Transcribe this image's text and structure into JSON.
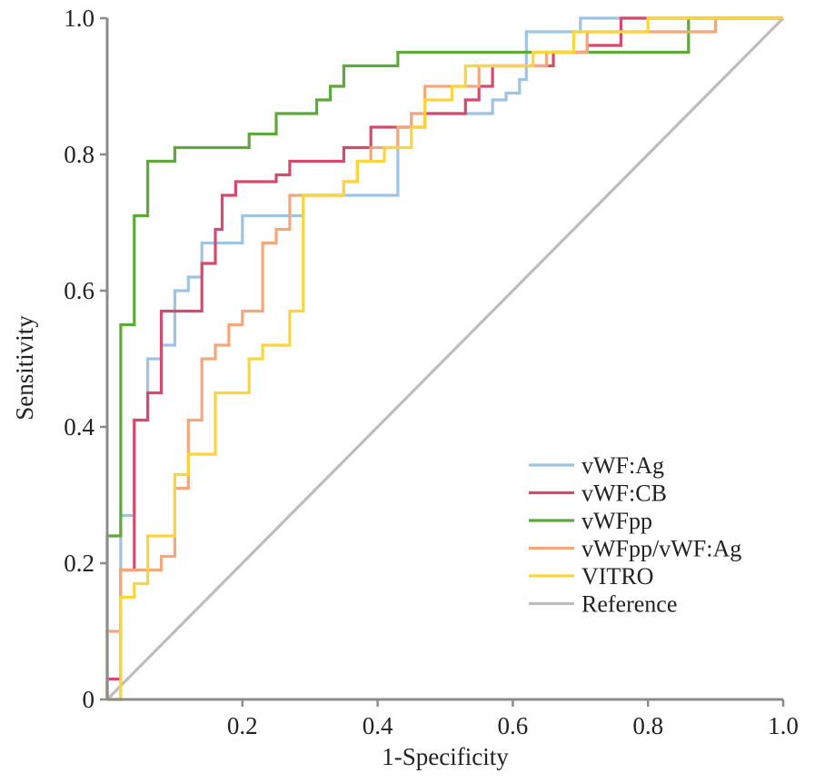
{
  "chart_data": {
    "type": "line",
    "xlabel": "1-Specificity",
    "ylabel": "Sensitivity",
    "xlim": [
      0,
      1
    ],
    "ylim": [
      0,
      1
    ],
    "x_ticks": [
      {
        "value": 0.2,
        "label": "0.2"
      },
      {
        "value": 0.4,
        "label": "0.4"
      },
      {
        "value": 0.6,
        "label": "0.6"
      },
      {
        "value": 0.8,
        "label": "0.8"
      },
      {
        "value": 1.0,
        "label": "1.0"
      }
    ],
    "y_ticks": [
      {
        "value": 0,
        "label": "0"
      },
      {
        "value": 0.2,
        "label": "0.2"
      },
      {
        "value": 0.4,
        "label": "0.4"
      },
      {
        "value": 0.6,
        "label": "0.6"
      },
      {
        "value": 0.8,
        "label": "0.8"
      },
      {
        "value": 1.0,
        "label": "1.0"
      }
    ],
    "grid": false,
    "legend_position": "bottom-right",
    "series": [
      {
        "name": "vWF:Ag",
        "color": "#9ec4e4",
        "points": [
          [
            0,
            0
          ],
          [
            0.02,
            0
          ],
          [
            0.02,
            0.2
          ],
          [
            0.02,
            0.27
          ],
          [
            0.04,
            0.27
          ],
          [
            0.04,
            0.41
          ],
          [
            0.06,
            0.41
          ],
          [
            0.06,
            0.5
          ],
          [
            0.08,
            0.5
          ],
          [
            0.08,
            0.52
          ],
          [
            0.1,
            0.52
          ],
          [
            0.1,
            0.6
          ],
          [
            0.12,
            0.6
          ],
          [
            0.12,
            0.62
          ],
          [
            0.14,
            0.62
          ],
          [
            0.14,
            0.67
          ],
          [
            0.2,
            0.67
          ],
          [
            0.2,
            0.71
          ],
          [
            0.29,
            0.71
          ],
          [
            0.29,
            0.74
          ],
          [
            0.43,
            0.74
          ],
          [
            0.43,
            0.84
          ],
          [
            0.45,
            0.84
          ],
          [
            0.45,
            0.86
          ],
          [
            0.51,
            0.86
          ],
          [
            0.51,
            0.86
          ],
          [
            0.57,
            0.86
          ],
          [
            0.57,
            0.88
          ],
          [
            0.59,
            0.88
          ],
          [
            0.59,
            0.89
          ],
          [
            0.61,
            0.89
          ],
          [
            0.61,
            0.91
          ],
          [
            0.62,
            0.91
          ],
          [
            0.62,
            0.98
          ],
          [
            0.7,
            0.98
          ],
          [
            0.7,
            1.0
          ],
          [
            1,
            1
          ]
        ]
      },
      {
        "name": "vWF:CB",
        "color": "#d64a6e",
        "points": [
          [
            0,
            0
          ],
          [
            0,
            0.03
          ],
          [
            0.02,
            0.03
          ],
          [
            0.02,
            0.15
          ],
          [
            0.02,
            0.19
          ],
          [
            0.04,
            0.19
          ],
          [
            0.04,
            0.41
          ],
          [
            0.06,
            0.41
          ],
          [
            0.06,
            0.45
          ],
          [
            0.08,
            0.45
          ],
          [
            0.08,
            0.57
          ],
          [
            0.14,
            0.57
          ],
          [
            0.14,
            0.64
          ],
          [
            0.16,
            0.64
          ],
          [
            0.16,
            0.69
          ],
          [
            0.17,
            0.69
          ],
          [
            0.17,
            0.74
          ],
          [
            0.19,
            0.74
          ],
          [
            0.19,
            0.76
          ],
          [
            0.25,
            0.76
          ],
          [
            0.25,
            0.77
          ],
          [
            0.27,
            0.77
          ],
          [
            0.27,
            0.79
          ],
          [
            0.35,
            0.79
          ],
          [
            0.35,
            0.81
          ],
          [
            0.39,
            0.81
          ],
          [
            0.39,
            0.84
          ],
          [
            0.47,
            0.84
          ],
          [
            0.47,
            0.86
          ],
          [
            0.53,
            0.86
          ],
          [
            0.53,
            0.88
          ],
          [
            0.55,
            0.88
          ],
          [
            0.55,
            0.9
          ],
          [
            0.57,
            0.9
          ],
          [
            0.57,
            0.93
          ],
          [
            0.66,
            0.93
          ],
          [
            0.66,
            0.95
          ],
          [
            0.71,
            0.95
          ],
          [
            0.71,
            0.96
          ],
          [
            0.76,
            0.96
          ],
          [
            0.76,
            1.0
          ],
          [
            1,
            1
          ]
        ]
      },
      {
        "name": "vWFpp",
        "color": "#5fa83a",
        "points": [
          [
            0,
            0
          ],
          [
            0,
            0.1
          ],
          [
            0,
            0.24
          ],
          [
            0.02,
            0.24
          ],
          [
            0.02,
            0.55
          ],
          [
            0.04,
            0.55
          ],
          [
            0.04,
            0.71
          ],
          [
            0.06,
            0.71
          ],
          [
            0.06,
            0.76
          ],
          [
            0.06,
            0.79
          ],
          [
            0.1,
            0.79
          ],
          [
            0.1,
            0.81
          ],
          [
            0.21,
            0.81
          ],
          [
            0.21,
            0.83
          ],
          [
            0.25,
            0.83
          ],
          [
            0.25,
            0.86
          ],
          [
            0.31,
            0.86
          ],
          [
            0.31,
            0.88
          ],
          [
            0.33,
            0.88
          ],
          [
            0.33,
            0.9
          ],
          [
            0.35,
            0.9
          ],
          [
            0.35,
            0.93
          ],
          [
            0.43,
            0.93
          ],
          [
            0.43,
            0.95
          ],
          [
            0.86,
            0.95
          ],
          [
            0.86,
            0.98
          ],
          [
            0.86,
            1.0
          ],
          [
            1,
            1
          ]
        ]
      },
      {
        "name": "vWFpp/vWF:Ag",
        "color": "#f4a77c",
        "points": [
          [
            0,
            0
          ],
          [
            0,
            0.1
          ],
          [
            0.02,
            0.1
          ],
          [
            0.02,
            0.19
          ],
          [
            0.08,
            0.19
          ],
          [
            0.08,
            0.21
          ],
          [
            0.1,
            0.21
          ],
          [
            0.1,
            0.31
          ],
          [
            0.12,
            0.31
          ],
          [
            0.12,
            0.41
          ],
          [
            0.14,
            0.41
          ],
          [
            0.14,
            0.5
          ],
          [
            0.16,
            0.5
          ],
          [
            0.16,
            0.52
          ],
          [
            0.18,
            0.52
          ],
          [
            0.18,
            0.55
          ],
          [
            0.2,
            0.55
          ],
          [
            0.2,
            0.57
          ],
          [
            0.23,
            0.57
          ],
          [
            0.23,
            0.67
          ],
          [
            0.25,
            0.67
          ],
          [
            0.25,
            0.69
          ],
          [
            0.27,
            0.69
          ],
          [
            0.27,
            0.74
          ],
          [
            0.35,
            0.74
          ],
          [
            0.35,
            0.76
          ],
          [
            0.37,
            0.76
          ],
          [
            0.37,
            0.79
          ],
          [
            0.39,
            0.79
          ],
          [
            0.39,
            0.81
          ],
          [
            0.43,
            0.81
          ],
          [
            0.43,
            0.84
          ],
          [
            0.45,
            0.84
          ],
          [
            0.45,
            0.86
          ],
          [
            0.47,
            0.86
          ],
          [
            0.47,
            0.9
          ],
          [
            0.55,
            0.9
          ],
          [
            0.55,
            0.93
          ],
          [
            0.65,
            0.93
          ],
          [
            0.65,
            0.95
          ],
          [
            0.71,
            0.95
          ],
          [
            0.71,
            0.98
          ],
          [
            0.9,
            0.98
          ],
          [
            0.9,
            1.0
          ],
          [
            1,
            1
          ]
        ]
      },
      {
        "name": "VITRO",
        "color": "#fbd53c",
        "points": [
          [
            0,
            0
          ],
          [
            0.02,
            0
          ],
          [
            0.02,
            0.15
          ],
          [
            0.04,
            0.15
          ],
          [
            0.04,
            0.17
          ],
          [
            0.06,
            0.17
          ],
          [
            0.06,
            0.24
          ],
          [
            0.1,
            0.24
          ],
          [
            0.1,
            0.33
          ],
          [
            0.12,
            0.33
          ],
          [
            0.12,
            0.36
          ],
          [
            0.16,
            0.36
          ],
          [
            0.16,
            0.45
          ],
          [
            0.21,
            0.45
          ],
          [
            0.21,
            0.5
          ],
          [
            0.23,
            0.5
          ],
          [
            0.23,
            0.52
          ],
          [
            0.27,
            0.52
          ],
          [
            0.27,
            0.57
          ],
          [
            0.29,
            0.57
          ],
          [
            0.29,
            0.74
          ],
          [
            0.35,
            0.74
          ],
          [
            0.35,
            0.76
          ],
          [
            0.37,
            0.76
          ],
          [
            0.37,
            0.79
          ],
          [
            0.41,
            0.79
          ],
          [
            0.41,
            0.81
          ],
          [
            0.45,
            0.81
          ],
          [
            0.45,
            0.84
          ],
          [
            0.47,
            0.84
          ],
          [
            0.47,
            0.88
          ],
          [
            0.51,
            0.88
          ],
          [
            0.51,
            0.9
          ],
          [
            0.53,
            0.9
          ],
          [
            0.53,
            0.93
          ],
          [
            0.63,
            0.93
          ],
          [
            0.63,
            0.95
          ],
          [
            0.69,
            0.95
          ],
          [
            0.69,
            0.98
          ],
          [
            0.8,
            0.98
          ],
          [
            0.8,
            1.0
          ],
          [
            1,
            1
          ]
        ]
      },
      {
        "name": "Reference",
        "color": "#bdbdbd",
        "points": [
          [
            0,
            0
          ],
          [
            1,
            1
          ]
        ]
      }
    ]
  }
}
